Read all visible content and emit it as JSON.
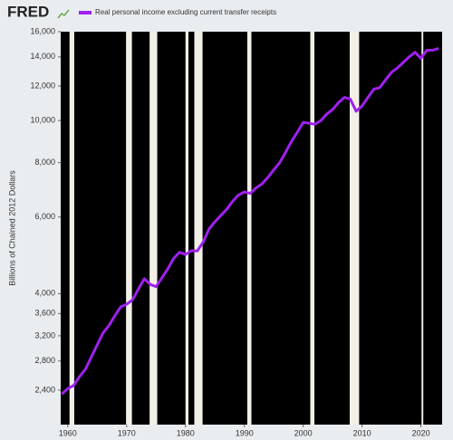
{
  "logo": "FRED",
  "chart_data": {
    "type": "line",
    "log_y": true,
    "grid": false,
    "ylabel": "Billions of Chained 2012 Dollars",
    "x": [
      1959,
      1960,
      1961,
      1962,
      1963,
      1964,
      1965,
      1966,
      1967,
      1968,
      1969,
      1970,
      1971,
      1972,
      1973,
      1974,
      1975,
      1976,
      1977,
      1978,
      1979,
      1980,
      1981,
      1982,
      1983,
      1984,
      1985,
      1986,
      1987,
      1988,
      1989,
      1990,
      1991,
      1992,
      1993,
      1994,
      1995,
      1996,
      1997,
      1998,
      1999,
      2000,
      2001,
      2002,
      2003,
      2004,
      2005,
      2006,
      2007,
      2008,
      2009,
      2010,
      2011,
      2012,
      2013,
      2014,
      2015,
      2016,
      2017,
      2018,
      2019,
      2020,
      2021,
      2022,
      2023
    ],
    "series": [
      {
        "name": "Real personal income excluding current transfer receipts",
        "color": "#a020f0",
        "values": [
          2350,
          2420,
          2460,
          2580,
          2680,
          2860,
          3050,
          3250,
          3380,
          3560,
          3730,
          3780,
          3870,
          4100,
          4330,
          4200,
          4150,
          4350,
          4560,
          4820,
          4980,
          4920,
          5020,
          5010,
          5250,
          5630,
          5850,
          6050,
          6250,
          6520,
          6740,
          6850,
          6800,
          7000,
          7150,
          7400,
          7700,
          8000,
          8450,
          8950,
          9400,
          9900,
          9850,
          9800,
          10000,
          10350,
          10600,
          11000,
          11300,
          11200,
          10500,
          10800,
          11300,
          11800,
          11900,
          12400,
          12900,
          13200,
          13600,
          14000,
          14350,
          13900,
          14500,
          14500,
          14650
        ]
      }
    ],
    "recessions": [
      [
        1960.3,
        1961.1
      ],
      [
        1969.9,
        1970.9
      ],
      [
        1973.9,
        1975.2
      ],
      [
        1980.0,
        1980.5
      ],
      [
        1981.5,
        1982.9
      ],
      [
        1990.5,
        1991.2
      ],
      [
        2001.2,
        2001.9
      ],
      [
        2007.9,
        2009.5
      ],
      [
        2020.1,
        2020.4
      ]
    ],
    "recession_color": "#f2efe6",
    "plot_background": "#000000",
    "xlim": [
      1958.8,
      2023.6
    ],
    "xticks": [
      1960,
      1970,
      1980,
      1990,
      2000,
      2010,
      2020
    ],
    "ylim": [
      2000,
      16000
    ],
    "yticks": [
      {
        "value": 2400,
        "label": "2,400"
      },
      {
        "value": 2800,
        "label": "2,800"
      },
      {
        "value": 3200,
        "label": "3,200"
      },
      {
        "value": 3600,
        "label": "3,600"
      },
      {
        "value": 4000,
        "label": "4,000"
      },
      {
        "value": 6000,
        "label": "6,000"
      },
      {
        "value": 8000,
        "label": "8,000"
      },
      {
        "value": 10000,
        "label": "10,000"
      },
      {
        "value": 12000,
        "label": "12,000"
      },
      {
        "value": 14000,
        "label": "14,000"
      },
      {
        "value": 16000,
        "label": "16,000"
      }
    ]
  }
}
